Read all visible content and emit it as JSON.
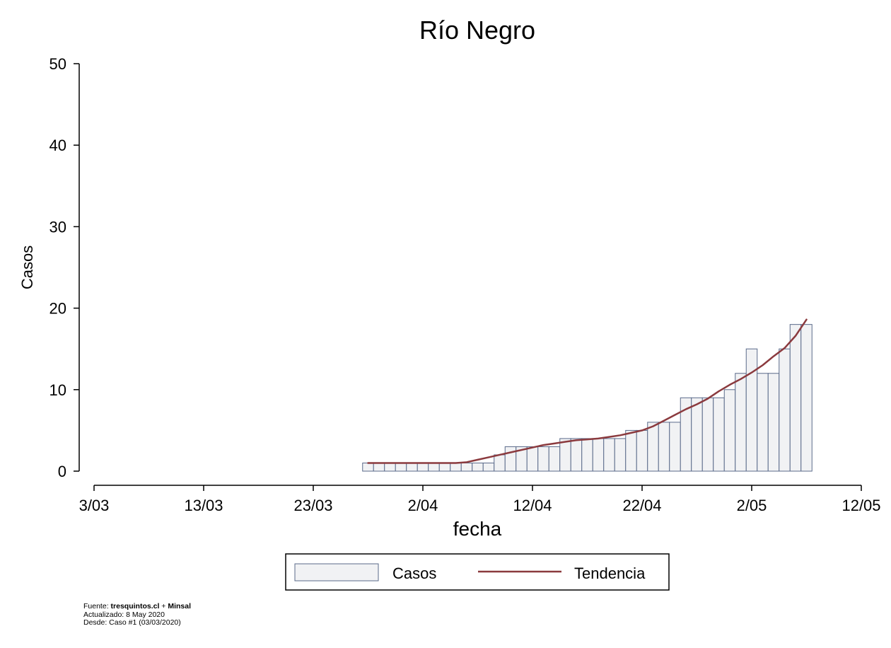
{
  "chart_data": {
    "type": "bar",
    "title": "Río Negro",
    "xlabel": "fecha",
    "ylabel": "Casos",
    "ylim": [
      0,
      50
    ],
    "yticks": [
      0,
      10,
      20,
      30,
      40,
      50
    ],
    "xlim": [
      "2020-03-03",
      "2020-05-12"
    ],
    "xticks": [
      {
        "date": "2020-03-03",
        "label": "3/03"
      },
      {
        "date": "2020-03-13",
        "label": "13/03"
      },
      {
        "date": "2020-03-23",
        "label": "23/03"
      },
      {
        "date": "2020-04-02",
        "label": "2/04"
      },
      {
        "date": "2020-04-12",
        "label": "12/04"
      },
      {
        "date": "2020-04-22",
        "label": "22/04"
      },
      {
        "date": "2020-05-02",
        "label": "2/05"
      },
      {
        "date": "2020-05-12",
        "label": "12/05"
      }
    ],
    "grid": false,
    "legend_position": "bottom",
    "series": [
      {
        "name": "Casos",
        "kind": "bar",
        "color": "#f1f2f4",
        "edge_color": "#5a6a8a",
        "x": [
          "2020-03-28",
          "2020-03-29",
          "2020-03-30",
          "2020-03-31",
          "2020-04-01",
          "2020-04-02",
          "2020-04-03",
          "2020-04-04",
          "2020-04-05",
          "2020-04-06",
          "2020-04-07",
          "2020-04-08",
          "2020-04-09",
          "2020-04-10",
          "2020-04-11",
          "2020-04-12",
          "2020-04-13",
          "2020-04-14",
          "2020-04-15",
          "2020-04-16",
          "2020-04-17",
          "2020-04-18",
          "2020-04-19",
          "2020-04-20",
          "2020-04-21",
          "2020-04-22",
          "2020-04-23",
          "2020-04-24",
          "2020-04-25",
          "2020-04-26",
          "2020-04-27",
          "2020-04-28",
          "2020-04-29",
          "2020-04-30",
          "2020-05-01",
          "2020-05-02",
          "2020-05-03",
          "2020-05-04",
          "2020-05-05",
          "2020-05-06",
          "2020-05-07"
        ],
        "values": [
          1,
          1,
          1,
          1,
          1,
          1,
          1,
          1,
          1,
          1,
          1,
          1,
          2,
          3,
          3,
          3,
          3,
          3,
          4,
          4,
          4,
          4,
          4,
          4,
          5,
          5,
          6,
          6,
          6,
          9,
          9,
          9,
          9,
          10,
          12,
          15,
          12,
          12,
          15,
          18,
          18
        ]
      },
      {
        "name": "Tendencia",
        "kind": "line",
        "color": "#8b3a3e",
        "x": [
          "2020-03-28",
          "2020-03-29",
          "2020-03-30",
          "2020-03-31",
          "2020-04-01",
          "2020-04-02",
          "2020-04-03",
          "2020-04-04",
          "2020-04-05",
          "2020-04-06",
          "2020-04-07",
          "2020-04-08",
          "2020-04-09",
          "2020-04-10",
          "2020-04-11",
          "2020-04-12",
          "2020-04-13",
          "2020-04-14",
          "2020-04-15",
          "2020-04-16",
          "2020-04-17",
          "2020-04-18",
          "2020-04-19",
          "2020-04-20",
          "2020-04-21",
          "2020-04-22",
          "2020-04-23",
          "2020-04-24",
          "2020-04-25",
          "2020-04-26",
          "2020-04-27",
          "2020-04-28",
          "2020-04-29",
          "2020-04-30",
          "2020-05-01",
          "2020-05-02",
          "2020-05-03",
          "2020-05-04",
          "2020-05-05",
          "2020-05-06",
          "2020-05-07"
        ],
        "values": [
          1,
          1,
          1,
          1,
          1,
          1,
          1,
          1,
          1,
          1.1,
          1.4,
          1.7,
          2.0,
          2.3,
          2.6,
          2.9,
          3.2,
          3.4,
          3.6,
          3.8,
          3.9,
          4.0,
          4.2,
          4.4,
          4.7,
          5.0,
          5.5,
          6.2,
          6.9,
          7.6,
          8.2,
          8.9,
          9.8,
          10.6,
          11.3,
          12.1,
          13.0,
          14.1,
          15.1,
          16.6,
          18.6
        ]
      }
    ]
  },
  "footer": {
    "source_prefix": "Fuente: ",
    "source_site": "tresquintos.cl",
    "source_sep": " + ",
    "source_org": "Minsal",
    "updated": "Actualizado: 8 May 2020",
    "since": "Desde: Caso #1  (03/03/2020)"
  }
}
